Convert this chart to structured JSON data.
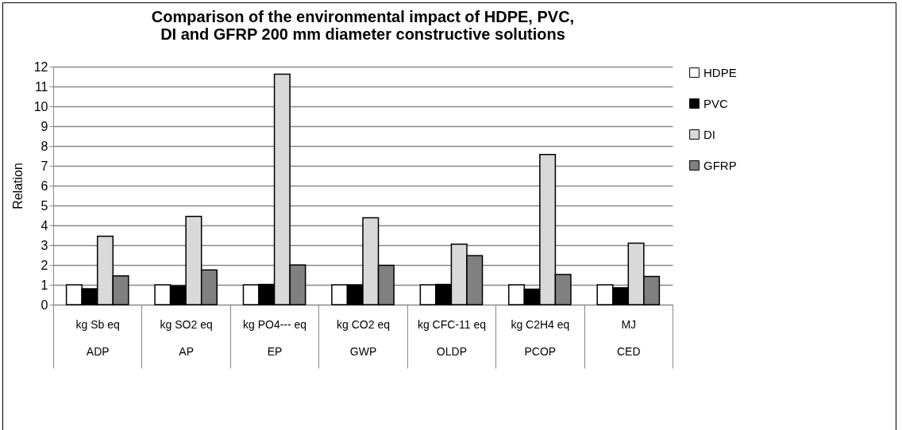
{
  "chart_data": {
    "type": "bar",
    "title": "Comparison of the environmental impact of HDPE, PVC, DI and GFRP 200 mm diameter constructive solutions",
    "ylabel": "Relation",
    "categories": [
      "kg Sb eq\nADP",
      "kg SO2 eq\nAP",
      "kg PO4--- eq\nEP",
      "kg CO2 eq\nGWP",
      "kg CFC-11 eq\nOLDP",
      "kg C2H4 eq\nPCOP",
      "MJ\nCED"
    ],
    "series": [
      {
        "name": "HDPE",
        "color": "#ffffff",
        "values": [
          1,
          1,
          1,
          1,
          1,
          1,
          1
        ]
      },
      {
        "name": "PVC",
        "color": "#000000",
        "values": [
          0.8,
          0.95,
          1.02,
          1.0,
          1.02,
          0.78,
          0.85
        ]
      },
      {
        "name": "DI",
        "color": "#d9d9d9",
        "values": [
          3.45,
          4.45,
          11.62,
          4.38,
          3.05,
          7.57,
          3.1
        ]
      },
      {
        "name": "GFRP",
        "color": "#808080",
        "values": [
          1.45,
          1.75,
          2.0,
          1.98,
          2.47,
          1.52,
          1.42
        ]
      }
    ],
    "ylim": [
      0,
      12
    ],
    "yticks": [
      0,
      1,
      2,
      3,
      4,
      5,
      6,
      7,
      8,
      9,
      10,
      11,
      12
    ],
    "grid": "y",
    "legend": "right"
  }
}
